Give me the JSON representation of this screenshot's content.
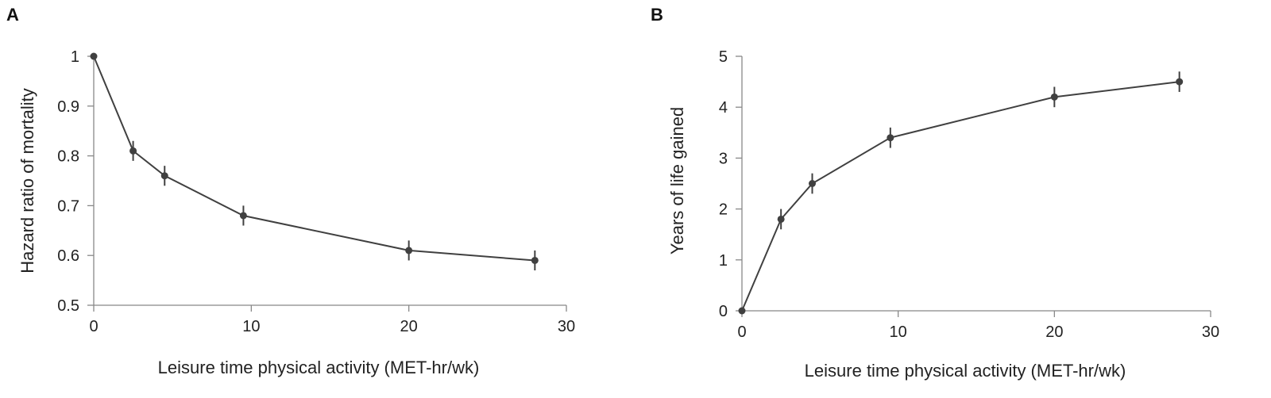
{
  "chart_data": [
    {
      "panel": "A",
      "type": "line",
      "xlabel": "Leisure time physical activity (MET-hr/wk)",
      "ylabel": "Hazard ratio of mortality",
      "xlim": [
        0,
        30
      ],
      "ylim": [
        0.5,
        1
      ],
      "xticks": [
        0,
        10,
        20,
        30
      ],
      "yticks": [
        0.5,
        0.6,
        0.7,
        0.8,
        0.9,
        1
      ],
      "ytick_labels": [
        "0.5",
        "0.6",
        "0.7",
        "0.8",
        "0.9",
        "1"
      ],
      "xtick_labels": [
        "0",
        "10",
        "20",
        "30"
      ],
      "grid": false,
      "series": [
        {
          "x": [
            0,
            2.5,
            4.5,
            9.5,
            20,
            28
          ],
          "y": [
            1.0,
            0.81,
            0.76,
            0.68,
            0.61,
            0.59
          ],
          "err": [
            0,
            0.02,
            0.02,
            0.02,
            0.02,
            0.02
          ]
        }
      ]
    },
    {
      "panel": "B",
      "type": "line",
      "xlabel": "Leisure time physical activity (MET-hr/wk)",
      "ylabel": "Years of life gained",
      "xlim": [
        0,
        30
      ],
      "ylim": [
        0,
        5
      ],
      "xticks": [
        0,
        10,
        20,
        30
      ],
      "yticks": [
        0,
        1,
        2,
        3,
        4,
        5
      ],
      "ytick_labels": [
        "0",
        "1",
        "2",
        "3",
        "4",
        "5"
      ],
      "xtick_labels": [
        "0",
        "10",
        "20",
        "30"
      ],
      "grid": false,
      "series": [
        {
          "x": [
            0,
            2.5,
            4.5,
            9.5,
            20,
            28
          ],
          "y": [
            0,
            1.8,
            2.5,
            3.4,
            4.2,
            4.5
          ],
          "err": [
            0,
            0.2,
            0.2,
            0.2,
            0.2,
            0.2
          ]
        }
      ]
    }
  ]
}
